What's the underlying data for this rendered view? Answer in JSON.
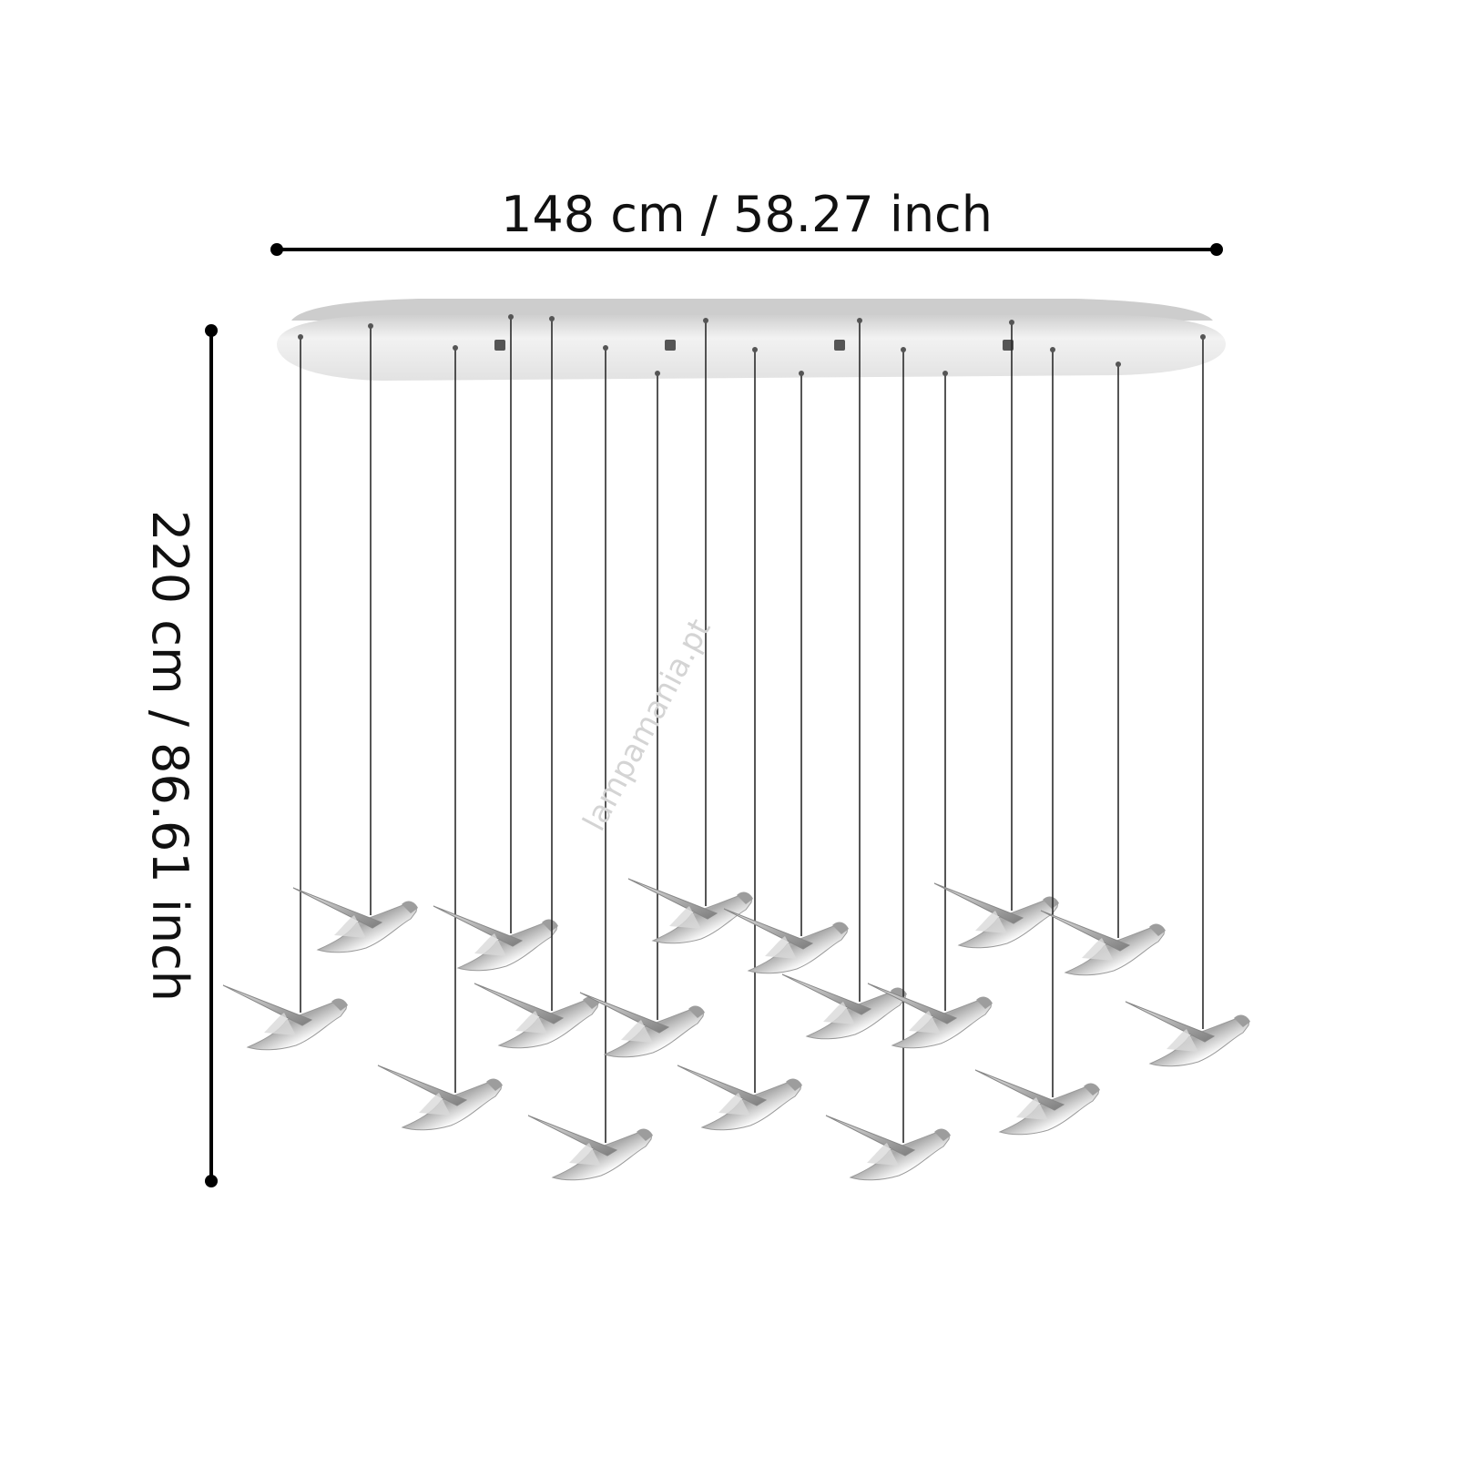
{
  "dimensions": {
    "width_label": "148 cm / 58.27 inch",
    "height_label": "220 cm / 86.61 inch"
  },
  "watermark": "lampamania.pt",
  "colors": {
    "dimension_line": "#000000",
    "canopy": "#e6e6e6",
    "wire": "#2b2b2b",
    "bird_chrome": "#c8c8c8"
  }
}
